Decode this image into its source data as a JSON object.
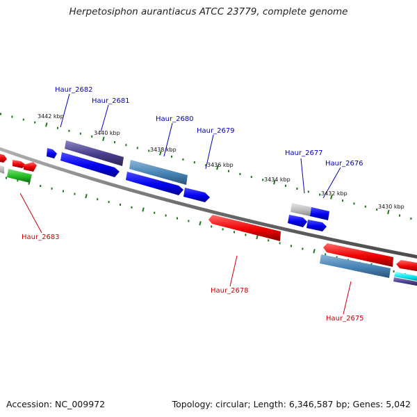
{
  "title": "Herpetosiphon aurantiacus ATCC 23779, complete genome",
  "footer": {
    "accession": "Accession: NC_009972",
    "summary": "Topology: circular; Length: 6,346,587 bp; Genes: 5,042"
  },
  "colors": {
    "upper_label": "#0000bb",
    "lower_label": "#cc0000",
    "tick": "#1a7a1a",
    "backbone": "#7a7a7a"
  },
  "ticks": [
    "3442 kbp",
    "3440 kbp",
    "3438 kbp",
    "3436 kbp",
    "3434 kbp",
    "3432 kbp",
    "3430 kbp"
  ],
  "gene_labels_upper": [
    "Haur_2682",
    "Haur_2681",
    "Haur_2680",
    "Haur_2679",
    "Haur_2677",
    "Haur_2676"
  ],
  "gene_labels_lower": [
    "Haur_2683",
    "Haur_2678",
    "Haur_2675"
  ]
}
